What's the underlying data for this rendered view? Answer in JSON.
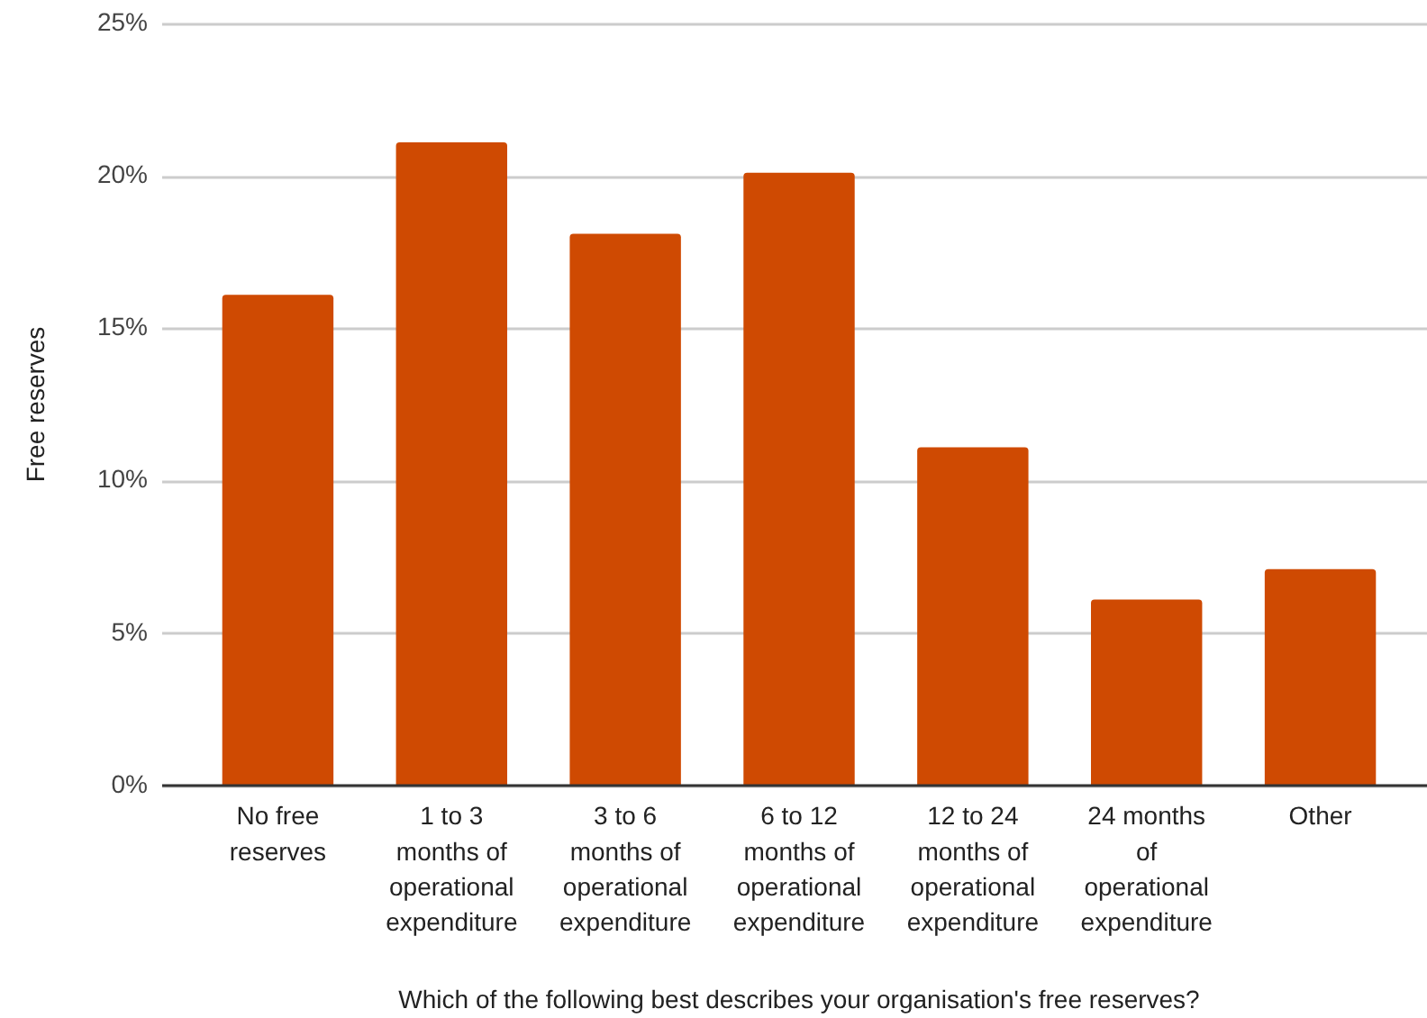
{
  "chart_data": {
    "type": "bar",
    "xlabel": "Which of the following best describes your organisation's free reserves?",
    "ylabel": "Free reserves",
    "categories": [
      "No free reserves",
      "1 to 3 months of operational expenditure",
      "3 to 6 months of operational expenditure",
      "6 to 12 months of operational expenditure",
      "12 to 24 months of operational expenditure",
      "24 months of operational expenditure",
      "Other"
    ],
    "values": [
      16.1,
      21.1,
      18.1,
      20.1,
      11.1,
      6.1,
      7.1
    ],
    "color": "#cf4a02",
    "ylim": [
      0,
      25
    ],
    "yticks": [
      {
        "value": 0,
        "label": "0%"
      },
      {
        "value": 5,
        "label": "5%"
      },
      {
        "value": 10,
        "label": "10%"
      },
      {
        "value": 15,
        "label": "15%"
      },
      {
        "value": 20,
        "label": "20%"
      },
      {
        "value": 25,
        "label": "25%"
      }
    ],
    "grid": "y"
  }
}
